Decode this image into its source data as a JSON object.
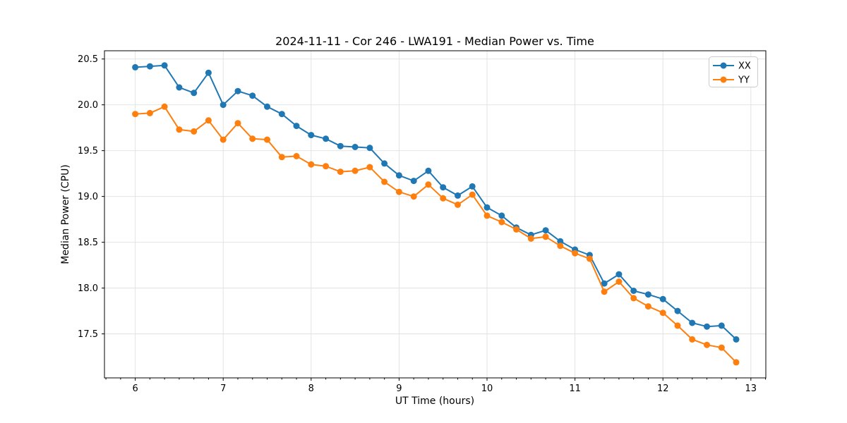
{
  "chart_data": {
    "type": "line",
    "title": "2024-11-11 - Cor 246 - LWA191 - Median Power vs. Time",
    "xlabel": "UT Time (hours)",
    "ylabel": "Median Power (CPU)",
    "xlim": [
      5.65,
      13.17
    ],
    "ylim": [
      17.02,
      20.59
    ],
    "x_ticks": [
      6,
      7,
      8,
      9,
      10,
      11,
      12,
      13
    ],
    "y_ticks": [
      17.5,
      18.0,
      18.5,
      19.0,
      19.5,
      20.0,
      20.5
    ],
    "x_minor_tick_step": 0.1667,
    "grid": true,
    "legend_position": "upper right",
    "x": [
      6.0,
      6.167,
      6.333,
      6.5,
      6.667,
      6.833,
      7.0,
      7.167,
      7.333,
      7.5,
      7.667,
      7.833,
      8.0,
      8.167,
      8.333,
      8.5,
      8.667,
      8.833,
      9.0,
      9.167,
      9.333,
      9.5,
      9.667,
      9.833,
      10.0,
      10.167,
      10.333,
      10.5,
      10.667,
      10.833,
      11.0,
      11.167,
      11.333,
      11.5,
      11.667,
      11.833,
      12.0,
      12.167,
      12.333,
      12.5,
      12.667,
      12.833
    ],
    "series": [
      {
        "name": "XX",
        "color": "#1f77b4",
        "values": [
          20.41,
          20.42,
          20.43,
          20.19,
          20.13,
          20.35,
          20.0,
          20.15,
          20.1,
          19.98,
          19.9,
          19.77,
          19.67,
          19.63,
          19.55,
          19.54,
          19.53,
          19.36,
          19.23,
          19.17,
          19.28,
          19.1,
          19.01,
          19.11,
          18.88,
          18.79,
          18.66,
          18.58,
          18.63,
          18.51,
          18.42,
          18.36,
          18.05,
          18.15,
          17.97,
          17.93,
          17.88,
          17.75,
          17.62,
          17.58,
          17.59,
          17.44
        ]
      },
      {
        "name": "YY",
        "color": "#ff7f0e",
        "values": [
          19.9,
          19.91,
          19.98,
          19.73,
          19.71,
          19.83,
          19.62,
          19.8,
          19.63,
          19.62,
          19.43,
          19.44,
          19.35,
          19.33,
          19.27,
          19.28,
          19.32,
          19.16,
          19.05,
          19.0,
          19.13,
          18.98,
          18.91,
          19.02,
          18.79,
          18.72,
          18.64,
          18.54,
          18.56,
          18.46,
          18.38,
          18.32,
          17.96,
          18.07,
          17.89,
          17.8,
          17.73,
          17.59,
          17.44,
          17.38,
          17.35,
          17.19
        ]
      }
    ]
  }
}
